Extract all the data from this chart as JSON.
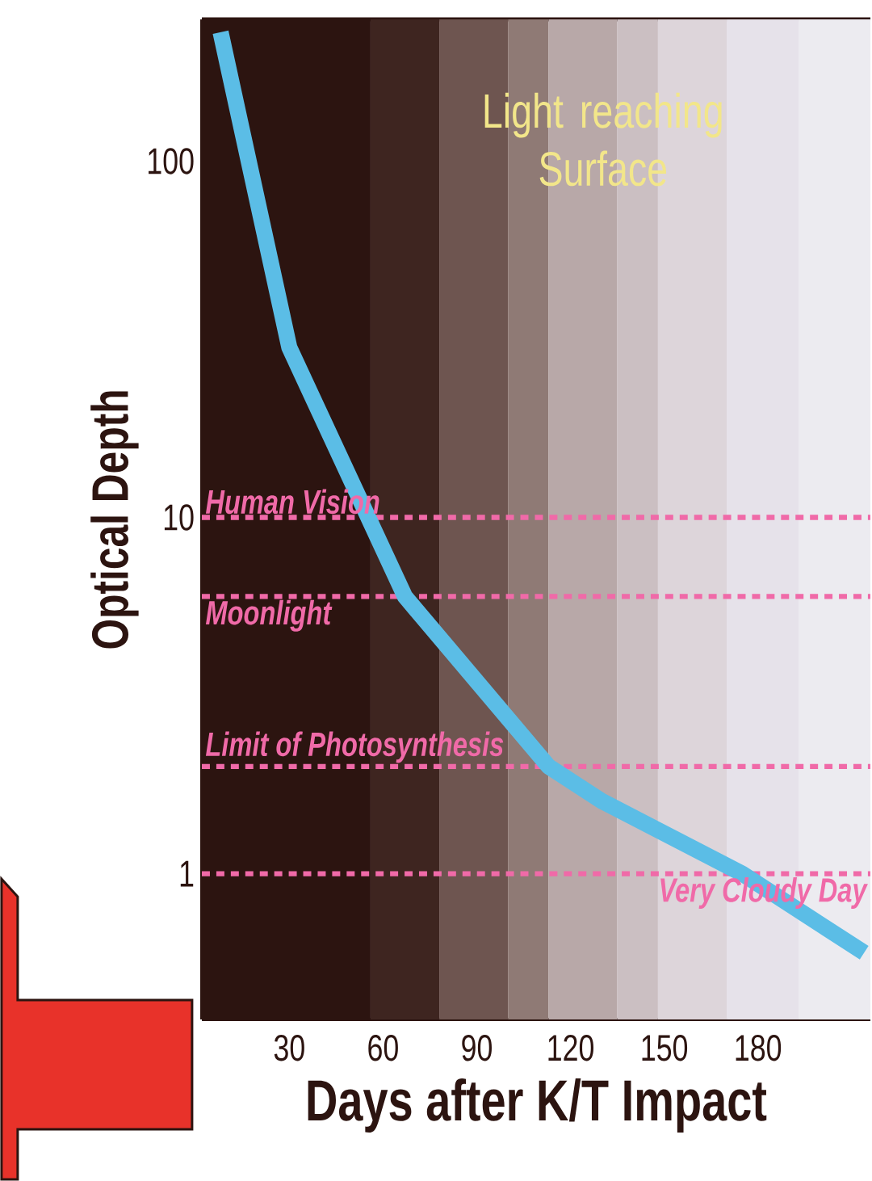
{
  "chart_data": {
    "type": "line",
    "title": "Light reaching Surface",
    "xlabel": "Days after K/T Impact",
    "ylabel": "Optical Depth",
    "x": [
      8,
      30,
      67,
      113,
      130,
      175,
      214
    ],
    "series": [
      {
        "color": "#5bbde6",
        "values": [
          230,
          30,
          6,
          2,
          1.6,
          1,
          0.6
        ]
      }
    ],
    "log": "y",
    "xlim": [
      2,
      216
    ],
    "ylim": [
      0.39,
      250
    ],
    "xticks": [
      30,
      60,
      90,
      120,
      150,
      180
    ],
    "yticks": [
      1,
      10,
      100
    ],
    "marker": "none",
    "line_style": "solid",
    "ref_lines": [
      {
        "axis": "y",
        "value": 10,
        "label": "Human Vision",
        "color": "#f06aa8",
        "line_style": "dashed"
      },
      {
        "axis": "y",
        "value": 6,
        "label": "Moonlight",
        "color": "#f06aa8",
        "line_style": "dashed"
      },
      {
        "axis": "y",
        "value": 2,
        "label": "Limit of Photosynthesis",
        "color": "#f06aa8",
        "line_style": "dashed"
      },
      {
        "axis": "y",
        "value": 1,
        "label": "Very Cloudy Day",
        "color": "#f06aa8",
        "line_style": "dashed"
      }
    ],
    "bands": [
      {
        "axis": "x",
        "from": 2,
        "to": 56,
        "color": "#2c1410"
      },
      {
        "axis": "x",
        "from": 56,
        "to": 78,
        "color": "#3e2520"
      },
      {
        "axis": "x",
        "from": 78,
        "to": 100,
        "color": "#6e5550"
      },
      {
        "axis": "x",
        "from": 100,
        "to": 113,
        "color": "#8f7a75"
      },
      {
        "axis": "x",
        "from": 113,
        "to": 135,
        "color": "#b8a8a8"
      },
      {
        "axis": "x",
        "from": 135,
        "to": 148,
        "color": "#cbbfc2"
      },
      {
        "axis": "x",
        "from": 148,
        "to": 170,
        "color": "#ddd5da"
      },
      {
        "axis": "x",
        "from": 170,
        "to": 193,
        "color": "#e6e2ea"
      },
      {
        "axis": "x",
        "from": 193,
        "to": 216,
        "color": "#ecebf0"
      }
    ]
  }
}
